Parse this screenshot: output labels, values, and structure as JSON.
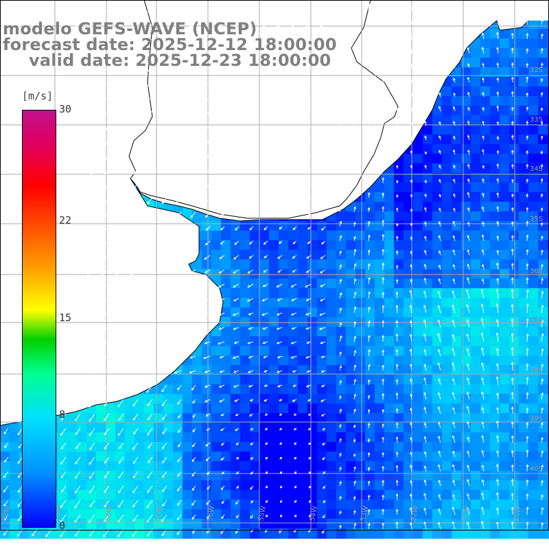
{
  "title": {
    "line1": "modelo GEFS-WAVE (NCEP)",
    "line2": "forecast date: 2025-12-12 18:00:00",
    "line3": "valid date: 2025-12-23 18:00:00"
  },
  "colorbar": {
    "unit": "[m/s]",
    "tick_labels": [
      "30",
      "22",
      "15",
      "8",
      "0"
    ],
    "tick_values": [
      30,
      22,
      15,
      8,
      0
    ],
    "colors": [
      "#0000ff",
      "#0090ff",
      "#00e0ff",
      "#00ff90",
      "#00d000",
      "#ffff00",
      "#ffa000",
      "#ff5000",
      "#ff0000",
      "#c0108a"
    ]
  },
  "map": {
    "lon_labels": [
      "60W",
      "59W",
      "58W",
      "57W",
      "56W",
      "55W",
      "54W",
      "53W",
      "52W",
      "51W",
      "50W"
    ],
    "lat_labels": [
      "32S",
      "33S",
      "34S",
      "35S",
      "36S",
      "37S",
      "38S",
      "39S",
      "40S"
    ],
    "land_color": "#ffffff",
    "grid_color": "#aaaaaa"
  }
}
